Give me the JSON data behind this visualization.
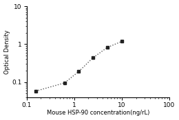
{
  "x_points": [
    0.156,
    0.625,
    1.25,
    2.5,
    5.0,
    10.0
  ],
  "y_points": [
    0.058,
    0.095,
    0.19,
    0.44,
    0.82,
    1.18
  ],
  "xlim": [
    0.1,
    100
  ],
  "ylim": [
    0.04,
    10
  ],
  "xlabel": "Mouse HSP-90 concentration(ng/rL)",
  "ylabel": "Optical Density",
  "line_color": "#555555",
  "marker_color": "#222222",
  "marker_style": "s",
  "marker_size": 3.5,
  "line_style": ":",
  "line_width": 1.0,
  "background_color": "#ffffff",
  "xticks": [
    0.1,
    1,
    10,
    100
  ],
  "xtick_labels": [
    "0.1",
    "1",
    "10",
    "100"
  ],
  "yticks": [
    0.1,
    1,
    10
  ],
  "ytick_labels": [
    "0.1",
    "1",
    "10"
  ],
  "xlabel_fontsize": 6.0,
  "ylabel_fontsize": 6.0,
  "tick_fontsize": 6.5
}
